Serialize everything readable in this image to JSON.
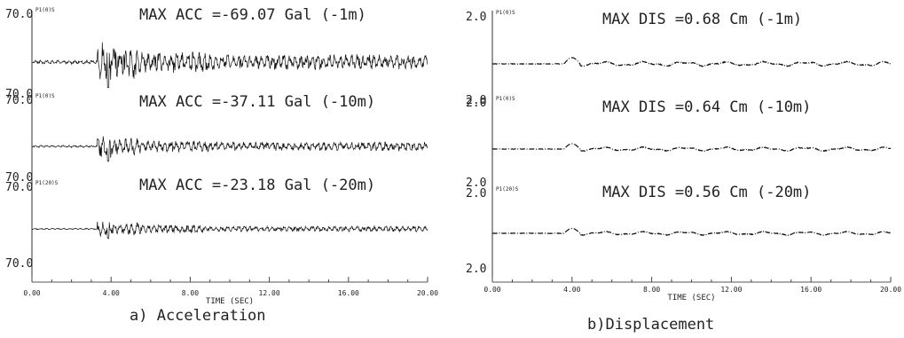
{
  "chart_data": [
    {
      "type": "line",
      "caption": "a) Acceleration",
      "xlabel": "TIME (SEC)",
      "xlim": [
        0,
        20
      ],
      "x_ticks": [
        "0.00",
        "4.00",
        "8.00",
        "12.00",
        "16.00",
        "20.00"
      ],
      "traces": [
        {
          "id": "P1(0)S",
          "title": "MAX ACC =-69.07 Gal (-1m)",
          "scale_top": "70.0",
          "scale_bottom": "70.0",
          "peak": -69.07,
          "units": "Gal",
          "depth": "-1m"
        },
        {
          "id": "P1(0)S",
          "title": "MAX ACC =-37.11 Gal (-10m)",
          "scale_top": "70.0",
          "scale_bottom": "70.0",
          "peak": -37.11,
          "units": "Gal",
          "depth": "-10m"
        },
        {
          "id": "P1(20)S",
          "title": "MAX ACC =-23.18 Gal (-20m)",
          "scale_top": "70.0",
          "scale_bottom": "70.0",
          "peak": -23.18,
          "units": "Gal",
          "depth": "-20m"
        }
      ]
    },
    {
      "type": "line",
      "caption": "b)Displacement",
      "xlabel": "TIME (SEC)",
      "xlim": [
        0,
        20
      ],
      "x_ticks": [
        "0.00",
        "4.00",
        "8.00",
        "12.00",
        "16.00",
        "20.00"
      ],
      "traces": [
        {
          "id": "P1(0)S",
          "title": "MAX DIS =0.68 Cm (-1m)",
          "scale_top": "2.0",
          "scale_bottom": "2.0",
          "peak": 0.68,
          "units": "Cm",
          "depth": "-1m"
        },
        {
          "id": "P1(0)S",
          "title": "MAX DIS =0.64 Cm (-10m)",
          "scale_top": "2.0",
          "scale_bottom": "2.0",
          "peak": 0.64,
          "units": "Cm",
          "depth": "-10m"
        },
        {
          "id": "P1(20)S",
          "title": "MAX DIS =0.56 Cm (-20m)",
          "scale_top": "2.0",
          "scale_bottom": "2.0",
          "peak": 0.56,
          "units": "Cm",
          "depth": "-20m"
        }
      ]
    }
  ]
}
